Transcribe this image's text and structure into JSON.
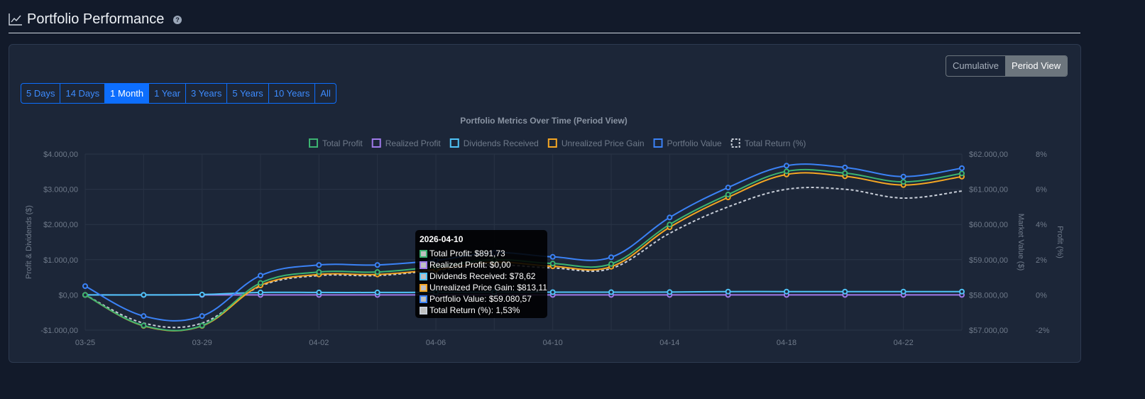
{
  "header": {
    "title": "Portfolio Performance",
    "help_glyph": "?"
  },
  "view_toggle": [
    "Cumulative",
    "Period View"
  ],
  "view_active": 1,
  "ranges": [
    "5 Days",
    "14 Days",
    "1 Month",
    "1 Year",
    "3 Years",
    "5 Years",
    "10 Years",
    "All"
  ],
  "range_active": 2,
  "chart_data": {
    "type": "line",
    "title": "Portfolio Metrics Over Time (Period View)",
    "x": [
      "03-25",
      "03-27",
      "03-29",
      "03-31",
      "04-02",
      "04-04",
      "04-06",
      "04-08",
      "04-10",
      "04-12",
      "04-14",
      "04-16",
      "04-18",
      "04-20",
      "04-22",
      "04-24"
    ],
    "x_tick_labels": [
      "03-25",
      "03-29",
      "04-02",
      "04-06",
      "04-10",
      "04-14",
      "04-18",
      "04-22"
    ],
    "y_left": {
      "label": "Profit & Dividends ($)",
      "range": [
        -1000,
        4000
      ],
      "ticks": [
        "-$1.000,00",
        "$0,00",
        "$1.000,00",
        "$2.000,00",
        "$3.000,00",
        "$4.000,00"
      ]
    },
    "y_right_value": {
      "label": "Market Value ($)",
      "range": [
        57000,
        62000
      ],
      "ticks": [
        "$57.000,00",
        "$58.000,00",
        "$59.000,00",
        "$60.000,00",
        "$61.000,00",
        "$62.000,00"
      ]
    },
    "y_right_pct": {
      "label": "Profit (%)",
      "range": [
        -2,
        8
      ],
      "ticks": [
        "-2%",
        "0%",
        "2%",
        "4%",
        "6%",
        "8%"
      ]
    },
    "legend_position": "top-center",
    "series": [
      {
        "name": "Total Profit",
        "axis": "left",
        "color": "#3cb371",
        "values": [
          0,
          -870,
          -870,
          340,
          650,
          650,
          800,
          1000,
          891.73,
          880,
          2000,
          2850,
          3510,
          3460,
          3210,
          3450
        ]
      },
      {
        "name": "Realized Profit",
        "axis": "left",
        "color": "#9f7aea",
        "values": [
          0,
          0,
          0,
          0,
          0,
          0,
          0,
          0,
          0,
          0,
          0,
          0,
          0,
          0,
          0,
          0
        ]
      },
      {
        "name": "Dividends Received",
        "axis": "left",
        "color": "#4fc3f7",
        "values": [
          0,
          0,
          10,
          70,
          70,
          70,
          75,
          78,
          78.62,
          78,
          80,
          95,
          95,
          95,
          95,
          95
        ]
      },
      {
        "name": "Unrealized Price Gain",
        "axis": "left",
        "color": "#f5a623",
        "values": [
          0,
          -880,
          -880,
          270,
          580,
          580,
          720,
          930,
          813.11,
          800,
          1920,
          2770,
          3420,
          3370,
          3120,
          3360
        ]
      },
      {
        "name": "Portfolio Value",
        "axis": "right_value",
        "color": "#3b82f6",
        "values": [
          58250,
          57400,
          57400,
          58550,
          58850,
          58850,
          58980,
          59200,
          59080.57,
          59070,
          60200,
          61050,
          61670,
          61620,
          61360,
          61600
        ]
      },
      {
        "name": "Total Return (%)",
        "axis": "right_pct",
        "color": "#c8ced8",
        "dashed": true,
        "values": [
          0,
          -1.6,
          -1.6,
          0.5,
          1.1,
          1.1,
          1.4,
          1.7,
          1.53,
          1.5,
          3.5,
          5.0,
          6.0,
          6.0,
          5.5,
          5.9
        ]
      }
    ]
  },
  "tooltip": {
    "title": "2026-04-10",
    "rows": [
      {
        "text": "Total Profit: $891,73",
        "color": "#3cb371"
      },
      {
        "text": "Realized Profit: $0,00",
        "color": "#9f7aea"
      },
      {
        "text": "Dividends Received: $78,62",
        "color": "#4fc3f7"
      },
      {
        "text": "Unrealized Price Gain: $813,11",
        "color": "#f5a623"
      },
      {
        "text": "Portfolio Value: $59.080,57",
        "color": "#3b82f6"
      },
      {
        "text": "Total Return (%): 1,53%",
        "color": "#c8ced8"
      }
    ]
  }
}
